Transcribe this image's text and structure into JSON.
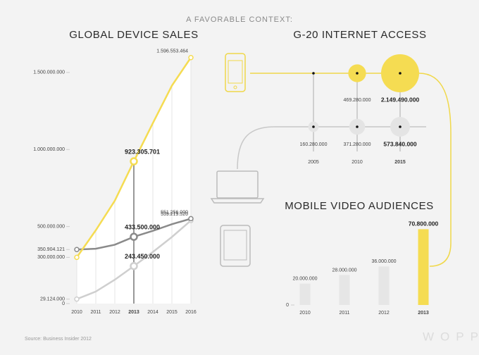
{
  "header": {
    "title": "A FAVORABLE CONTEXT:"
  },
  "source": "Source: Business Insider 2012",
  "logo": "WOPP",
  "chart_data": [
    {
      "type": "line",
      "title": "GLOBAL DEVICE SALES",
      "categories": [
        "2010",
        "2011",
        "2012",
        "2013",
        "2014",
        "2015",
        "2016"
      ],
      "highlight": "2013",
      "series": [
        {
          "color": "#f5dc52",
          "values": [
            300000000,
            476000000,
            668000000,
            923305701,
            1171000000,
            1414000000,
            1596553464
          ],
          "value_labels": [
            null,
            null,
            null,
            "923.305.701",
            null,
            null,
            "1.596.553.464"
          ]
        },
        {
          "color": "#8a8a8a",
          "values": [
            350904121,
            356000000,
            382000000,
            433500000,
            472000000,
            515000000,
            551256000
          ],
          "value_labels": [
            null,
            null,
            null,
            "433.500.000",
            null,
            null,
            "551.256.000"
          ]
        },
        {
          "color": "#cfcfcf",
          "values": [
            29124000,
            78000000,
            155000000,
            243450000,
            335000000,
            432000000,
            539219520
          ],
          "value_labels": [
            null,
            null,
            null,
            "243.450.000",
            null,
            null,
            "539.219.520"
          ]
        }
      ],
      "ylim": [
        0,
        1600000000
      ],
      "yticks": [
        0,
        {
          "value": 29124000,
          "label": "29.124.000"
        },
        {
          "value": 300000000,
          "label": "300.000.000"
        },
        {
          "value": 350904121,
          "label": "350.904.121"
        },
        {
          "value": 500000000,
          "label": "500.000.000"
        },
        {
          "value": 1000000000,
          "label": "1.000.000.000"
        },
        {
          "value": 1500000000,
          "label": "1.500.000.000"
        }
      ]
    },
    {
      "type": "bubble",
      "title": "G-20 INTERNET ACCESS",
      "categories": [
        "2005",
        "2010",
        "2015"
      ],
      "highlight": "2015",
      "series": [
        {
          "color": "#f5dc52",
          "values": [
            null,
            469280000,
            2149490000
          ],
          "value_labels": [
            null,
            "469.280.000",
            "2.149.490.000"
          ]
        },
        {
          "color": "#e4e4e4",
          "values": [
            160280000,
            371280000,
            573840000
          ],
          "value_labels": [
            "160.280.000",
            "371.280.000",
            "573.840.000"
          ]
        }
      ]
    },
    {
      "type": "bar",
      "title": "MOBILE VIDEO AUDIENCES",
      "categories": [
        "2010",
        "2011",
        "2012",
        "2013"
      ],
      "highlight": "2013",
      "values": [
        20000000,
        28000000,
        36000000,
        70800000
      ],
      "value_labels": [
        "20.000.000",
        "28.000.000",
        "36.000.000",
        "70.800.000"
      ],
      "colors": [
        "#e6e6e6",
        "#e6e6e6",
        "#e6e6e6",
        "#f5dc52"
      ],
      "ylim": [
        0,
        75000000
      ],
      "yticks": [
        0
      ]
    }
  ]
}
